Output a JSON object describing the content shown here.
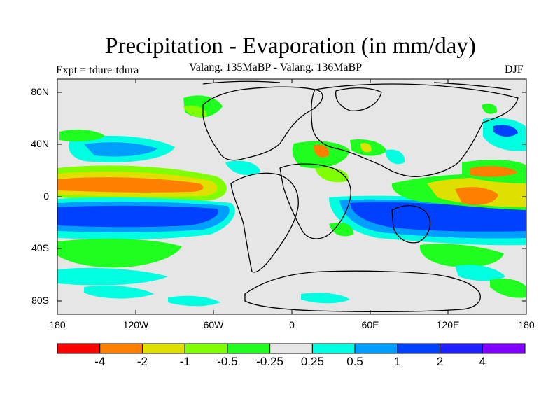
{
  "title": "Precipitation - Evaporation (in mm/day)",
  "experiment": "Expt = tdure-tdura",
  "subtitle": "Valang.  135MaBP - Valang.  136MaBP",
  "season": "DJF",
  "lat_labels": [
    "80N",
    "40N",
    "0",
    "40S",
    "80S"
  ],
  "lon_labels": [
    "180",
    "120W",
    "60W",
    "0",
    "60E",
    "120E",
    "180"
  ],
  "colorbar": {
    "colors": [
      "#ff0000",
      "#ff7f00",
      "#e0e000",
      "#7fff00",
      "#1fff1f",
      "#e6e6e6",
      "#00ffe0",
      "#009fff",
      "#0040ff",
      "#1f1fff",
      "#7f00ff"
    ],
    "labels": [
      "-4",
      "-2",
      "-1",
      "-0.5",
      "-0.25",
      "0.25",
      "0.5",
      "1",
      "2",
      "4"
    ]
  },
  "colors": {
    "background_field": "#e6e6e6",
    "coastline": "#000000"
  }
}
